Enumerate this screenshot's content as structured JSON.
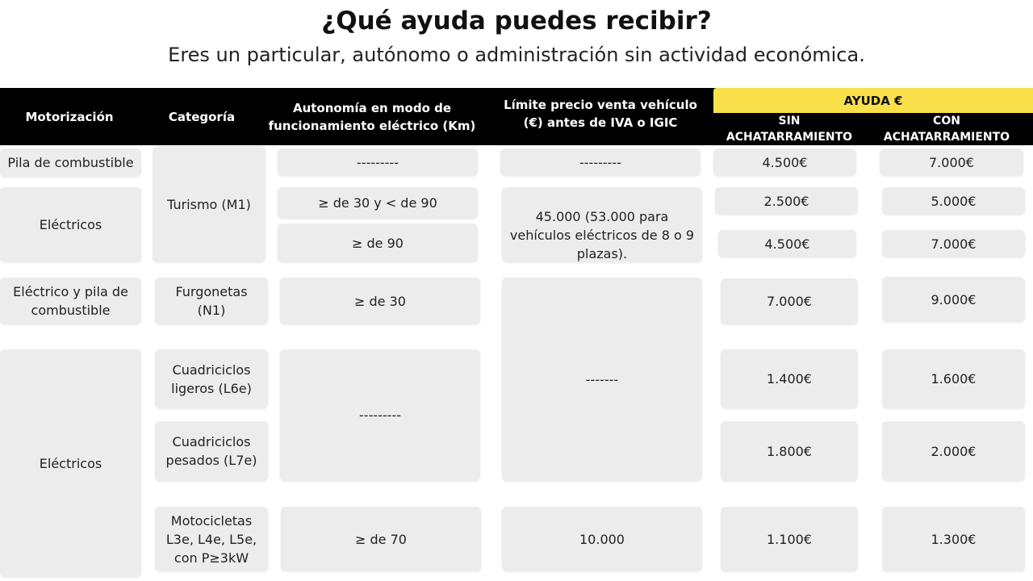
{
  "title": "¿Qué ayuda puedes recibir?",
  "subtitle": "Eres un particular, autónomo o administración sin actividad económica.",
  "header": {
    "motorizacion": "Motorización",
    "categoria": "Categoría",
    "autonomia": "Autonomía en modo de funcionamiento eléctrico (Km)",
    "limite": "Límite precio venta vehículo (€) antes de IVA o IGIC",
    "ayuda": "AYUDA €",
    "sin": "SIN ACHATARRAMIENTO",
    "con": "CON ACHATARRAMIENTO"
  },
  "motorizacion": {
    "pila": "Pila de combustible",
    "electricos1": "Eléctricos",
    "electrico_pila": "Eléctrico y pila de combustible",
    "electricos2": "Eléctricos"
  },
  "categoria": {
    "turismo": "Turismo (M1)",
    "furgonetas": "Furgonetas (N1)",
    "cuad_ligeros": "Cuadriciclos ligeros (L6e)",
    "cuad_pesados": "Cuadriciclos pesados (L7e)",
    "motocicletas": "Motocicletas L3e, L4e, L5e, con P≥3kW"
  },
  "autonomia": {
    "pila": "---------",
    "r30_90": "≥ de 30 y < de 90",
    "r90": "≥ de 90",
    "furgonetas": "≥ de 30",
    "cuadriciclos": "---------",
    "motos": "≥  de 70"
  },
  "limite": {
    "pila": "---------",
    "turismo": "45.000 (53.000 para vehículos eléctricos de 8 o 9 plazas).",
    "furg_cuad": "-------",
    "motos": "10.000"
  },
  "sin": {
    "pila": "4.500€",
    "r30_90": "2.500€",
    "r90": "4.500€",
    "furgonetas": "7.000€",
    "cuad_ligeros": "1.400€",
    "cuad_pesados": "1.800€",
    "motos": "1.100€"
  },
  "con": {
    "pila": "7.000€",
    "r30_90": "5.000€",
    "r90": "7.000€",
    "furgonetas": "9.000€",
    "cuad_ligeros": "1.600€",
    "cuad_pesados": "2.000€",
    "motos": "1.300€"
  },
  "colors": {
    "header_bg": "#000000",
    "ayuda_bg": "#f9e04b",
    "cell_bg": "#ececec"
  }
}
